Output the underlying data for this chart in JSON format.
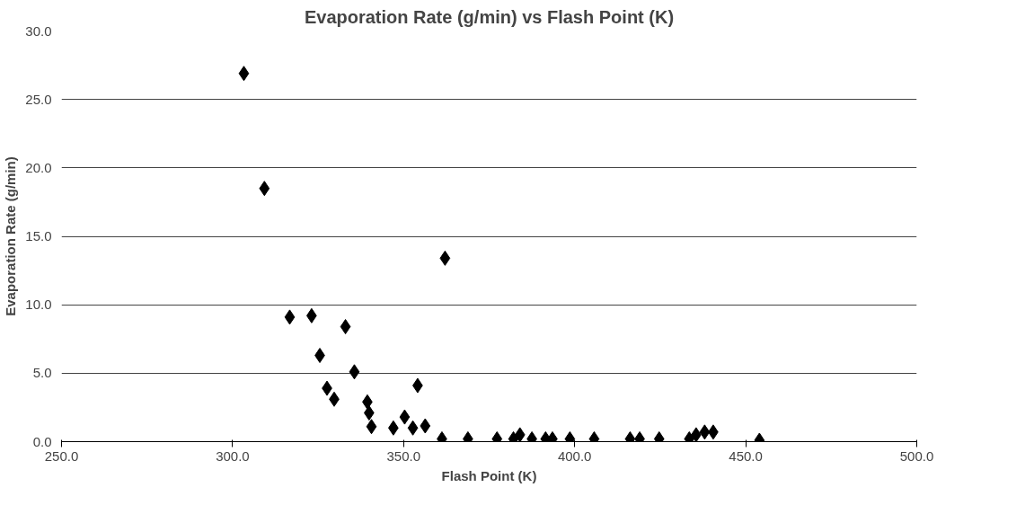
{
  "chart_data": {
    "type": "scatter",
    "title": "Evaporation Rate (g/min) vs Flash Point (K)",
    "xlabel": "Flash Point (K)",
    "ylabel": "Evaporation Rate (g/min)",
    "x": [
      303.3,
      309.3,
      362.1,
      316.7,
      323.1,
      333.0,
      325.5,
      335.6,
      327.6,
      329.7,
      354.1,
      339.4,
      339.9,
      340.6,
      347.0,
      350.3,
      352.7,
      356.3,
      361.2,
      368.8,
      377.3,
      382.1,
      384.0,
      387.5,
      391.5,
      393.5,
      398.6,
      405.7,
      416.2,
      419.0,
      424.7,
      433.5,
      435.5,
      438.0,
      440.5,
      454.0
    ],
    "series": [
      {
        "color": "#000000",
        "values": [
          26.9,
          18.5,
          13.4,
          9.1,
          9.2,
          8.4,
          6.3,
          5.1,
          3.9,
          3.1,
          4.1,
          2.9,
          2.1,
          1.1,
          1.0,
          1.8,
          1.0,
          1.15,
          0.2,
          0.2,
          0.2,
          0.2,
          0.5,
          0.2,
          0.2,
          0.2,
          0.2,
          0.2,
          0.2,
          0.2,
          0.2,
          0.2,
          0.5,
          0.7,
          0.7,
          0.1
        ]
      }
    ],
    "xlim": [
      250,
      500
    ],
    "ylim": [
      0,
      30
    ],
    "xticks": [
      {
        "value": 250,
        "label": "250.0"
      },
      {
        "value": 300,
        "label": "300.0"
      },
      {
        "value": 350,
        "label": "350.0"
      },
      {
        "value": 400,
        "label": "400.0"
      },
      {
        "value": 450,
        "label": "450.0"
      },
      {
        "value": 500,
        "label": "500.0"
      }
    ],
    "yticks": [
      {
        "value": 0,
        "label": "0.0"
      },
      {
        "value": 5,
        "label": "5.0"
      },
      {
        "value": 10,
        "label": "10.0"
      },
      {
        "value": 15,
        "label": "15.0"
      },
      {
        "value": 20,
        "label": "20.0"
      },
      {
        "value": 25,
        "label": "25.0"
      },
      {
        "value": 30,
        "label": "30.0"
      }
    ],
    "grid": "y",
    "marker": "diamond"
  }
}
